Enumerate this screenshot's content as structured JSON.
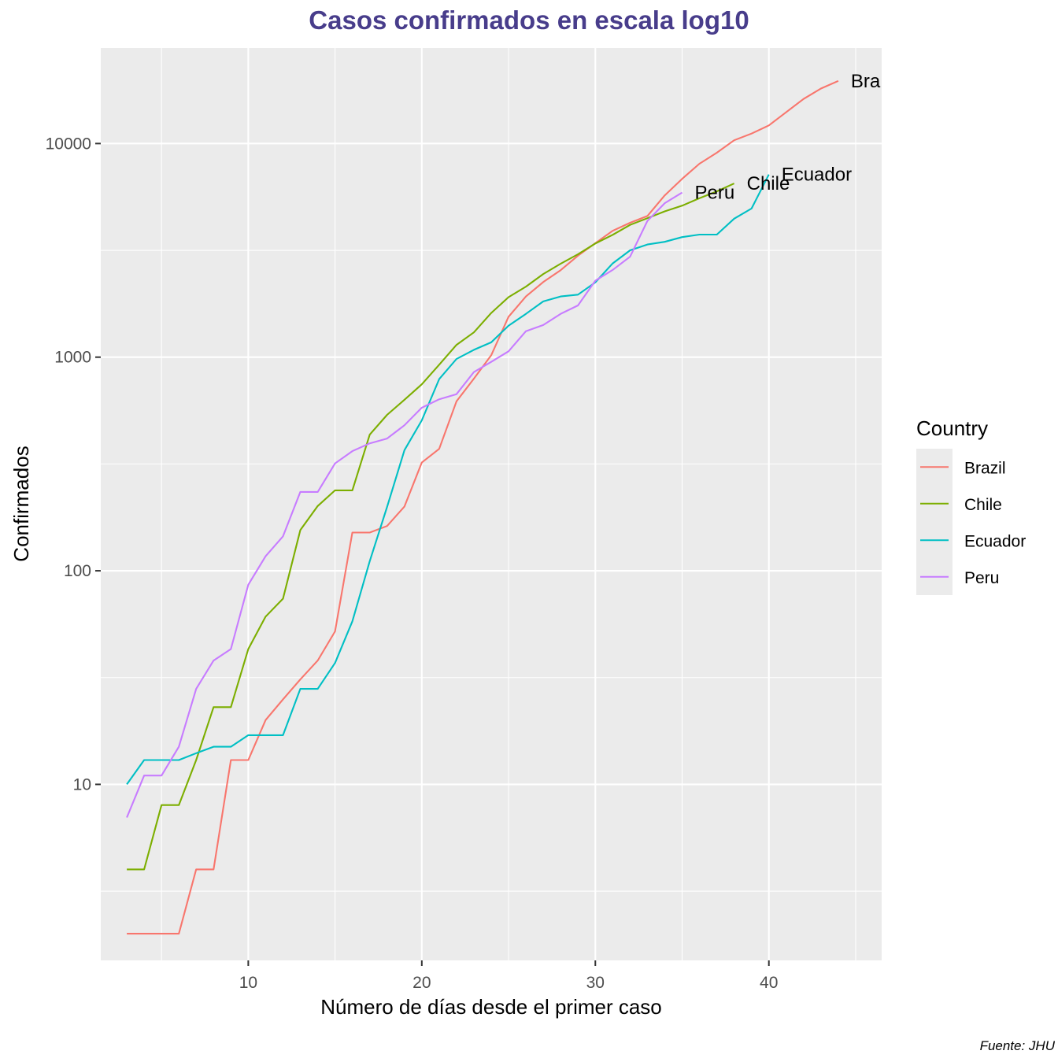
{
  "chart_data": {
    "type": "line",
    "title": "Casos confirmados en escala log10",
    "xlabel": "Número de días desde el primer caso",
    "ylabel": "Confirmados",
    "caption": "Fuente: JHU",
    "xlim": [
      1.5,
      46.5
    ],
    "ylim": [
      1.5,
      28000
    ],
    "y_scale": "log10",
    "x_ticks": [
      10,
      20,
      30,
      40
    ],
    "x_tick_labels": [
      "10",
      "20",
      "30",
      "40"
    ],
    "y_ticks": [
      10,
      100,
      1000,
      10000
    ],
    "y_tick_labels": [
      "10",
      "100",
      "1000",
      "10000"
    ],
    "grid": true,
    "legend": {
      "title": "Country",
      "position": "right",
      "entries": [
        "Brazil",
        "Chile",
        "Ecuador",
        "Peru"
      ]
    },
    "end_labels": {
      "Brazil": "Bra",
      "Chile": "Chile",
      "Ecuador": "Ecuador",
      "Peru": "Peru"
    },
    "colors": {
      "title": "#483D8B",
      "panel": "#EBEBEB",
      "grid": "#FFFFFF",
      "Brazil": "#F8766D",
      "Chile": "#7CAE00",
      "Ecuador": "#00BFC4",
      "Peru": "#C77CFF"
    },
    "series": [
      {
        "name": "Brazil",
        "x": [
          3,
          4,
          5,
          6,
          7,
          8,
          9,
          10,
          11,
          12,
          13,
          14,
          15,
          16,
          17,
          18,
          19,
          20,
          21,
          22,
          23,
          24,
          25,
          26,
          27,
          28,
          29,
          30,
          31,
          32,
          33,
          34,
          35,
          36,
          37,
          38,
          39,
          40,
          41,
          42,
          43,
          44
        ],
        "y": [
          2,
          2,
          2,
          2,
          4,
          4,
          13,
          13,
          20,
          25,
          31,
          38,
          52,
          151,
          151,
          162,
          200,
          321,
          372,
          621,
          793,
          1021,
          1546,
          1924,
          2247,
          2554,
          2985,
          3417,
          3904,
          4256,
          4579,
          5717,
          6836,
          8044,
          9056,
          10360,
          11130,
          12161,
          14034,
          16170,
          18092,
          19638
        ]
      },
      {
        "name": "Chile",
        "x": [
          3,
          4,
          5,
          6,
          7,
          8,
          9,
          10,
          11,
          12,
          13,
          14,
          15,
          16,
          17,
          18,
          19,
          20,
          21,
          22,
          23,
          24,
          25,
          26,
          27,
          28,
          29,
          30,
          31,
          32,
          33,
          34,
          35,
          36,
          37,
          38
        ],
        "y": [
          4,
          4,
          8,
          8,
          13,
          23,
          23,
          43,
          61,
          74,
          155,
          201,
          238,
          238,
          434,
          537,
          632,
          746,
          922,
          1142,
          1306,
          1610,
          1909,
          2139,
          2449,
          2738,
          3031,
          3404,
          3737,
          4161,
          4471,
          4815,
          5116,
          5546,
          5972,
          6501
        ]
      },
      {
        "name": "Ecuador",
        "x": [
          3,
          4,
          5,
          6,
          7,
          8,
          9,
          10,
          11,
          12,
          13,
          14,
          15,
          16,
          17,
          18,
          19,
          20,
          21,
          22,
          23,
          24,
          25,
          26,
          27,
          28,
          29,
          30,
          31,
          32,
          33,
          34,
          35,
          36,
          37,
          38,
          39,
          40
        ],
        "y": [
          10,
          13,
          13,
          13,
          14,
          15,
          15,
          17,
          17,
          17,
          28,
          28,
          37,
          58,
          111,
          199,
          367,
          506,
          789,
          981,
          1082,
          1173,
          1403,
          1595,
          1823,
          1924,
          1962,
          2240,
          2748,
          3163,
          3368,
          3465,
          3646,
          3747,
          3747,
          4450,
          4965,
          7161
        ]
      },
      {
        "name": "Peru",
        "x": [
          3,
          4,
          5,
          6,
          7,
          8,
          9,
          10,
          11,
          12,
          13,
          14,
          15,
          16,
          17,
          18,
          19,
          20,
          21,
          22,
          23,
          24,
          25,
          26,
          27,
          28,
          29,
          30,
          31,
          32,
          33,
          34,
          35
        ],
        "y": [
          7,
          11,
          11,
          15,
          28,
          38,
          43,
          86,
          117,
          145,
          234,
          234,
          318,
          363,
          395,
          416,
          480,
          580,
          635,
          671,
          852,
          950,
          1065,
          1323,
          1414,
          1595,
          1746,
          2281,
          2561,
          2954,
          4342,
          5256,
          5897
        ]
      }
    ]
  }
}
